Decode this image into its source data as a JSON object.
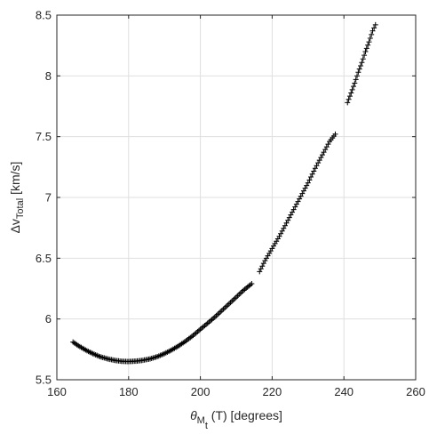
{
  "chart_data": {
    "type": "scatter",
    "marker": "plus",
    "marker_color": "#000000",
    "grid": true,
    "xlim": [
      160,
      260
    ],
    "ylim": [
      5.5,
      8.5
    ],
    "xticks": [
      160,
      180,
      200,
      220,
      240,
      260
    ],
    "yticks": [
      5.5,
      6,
      6.5,
      7,
      7.5,
      8,
      8.5
    ],
    "xtick_labels": [
      "160",
      "180",
      "200",
      "220",
      "240",
      "260"
    ],
    "ytick_labels": [
      "5.5",
      "6",
      "6.5",
      "7",
      "7.5",
      "8",
      "8.5"
    ],
    "xlabel": {
      "theta": "θ",
      "sub": "M",
      "subsub": "t",
      "rest": " (T) [degrees]"
    },
    "ylabel": {
      "main": "Δv",
      "sub": "Total",
      "rest": " [km/s]"
    },
    "segments": [
      {
        "x": [
          164.5,
          166,
          168,
          170,
          172,
          174,
          176,
          178,
          180,
          182,
          184,
          186,
          188,
          190,
          192,
          194,
          196,
          198,
          200,
          202,
          204,
          206,
          208,
          210,
          212,
          214.3
        ],
        "y": [
          5.81,
          5.78,
          5.745,
          5.715,
          5.69,
          5.673,
          5.66,
          5.652,
          5.65,
          5.653,
          5.66,
          5.672,
          5.69,
          5.715,
          5.745,
          5.78,
          5.82,
          5.865,
          5.915,
          5.965,
          6.015,
          6.07,
          6.125,
          6.18,
          6.235,
          6.29
        ]
      },
      {
        "x": [
          216.5,
          218,
          220,
          222,
          224,
          226,
          228,
          230,
          232,
          234,
          236,
          237.6
        ],
        "y": [
          6.39,
          6.48,
          6.58,
          6.68,
          6.79,
          6.9,
          7.01,
          7.12,
          7.24,
          7.35,
          7.46,
          7.52
        ]
      },
      {
        "x": [
          241,
          242,
          243,
          244,
          245,
          246,
          247,
          248,
          248.8
        ],
        "y": [
          7.78,
          7.86,
          7.94,
          8.03,
          8.11,
          8.2,
          8.28,
          8.37,
          8.42
        ]
      }
    ]
  }
}
